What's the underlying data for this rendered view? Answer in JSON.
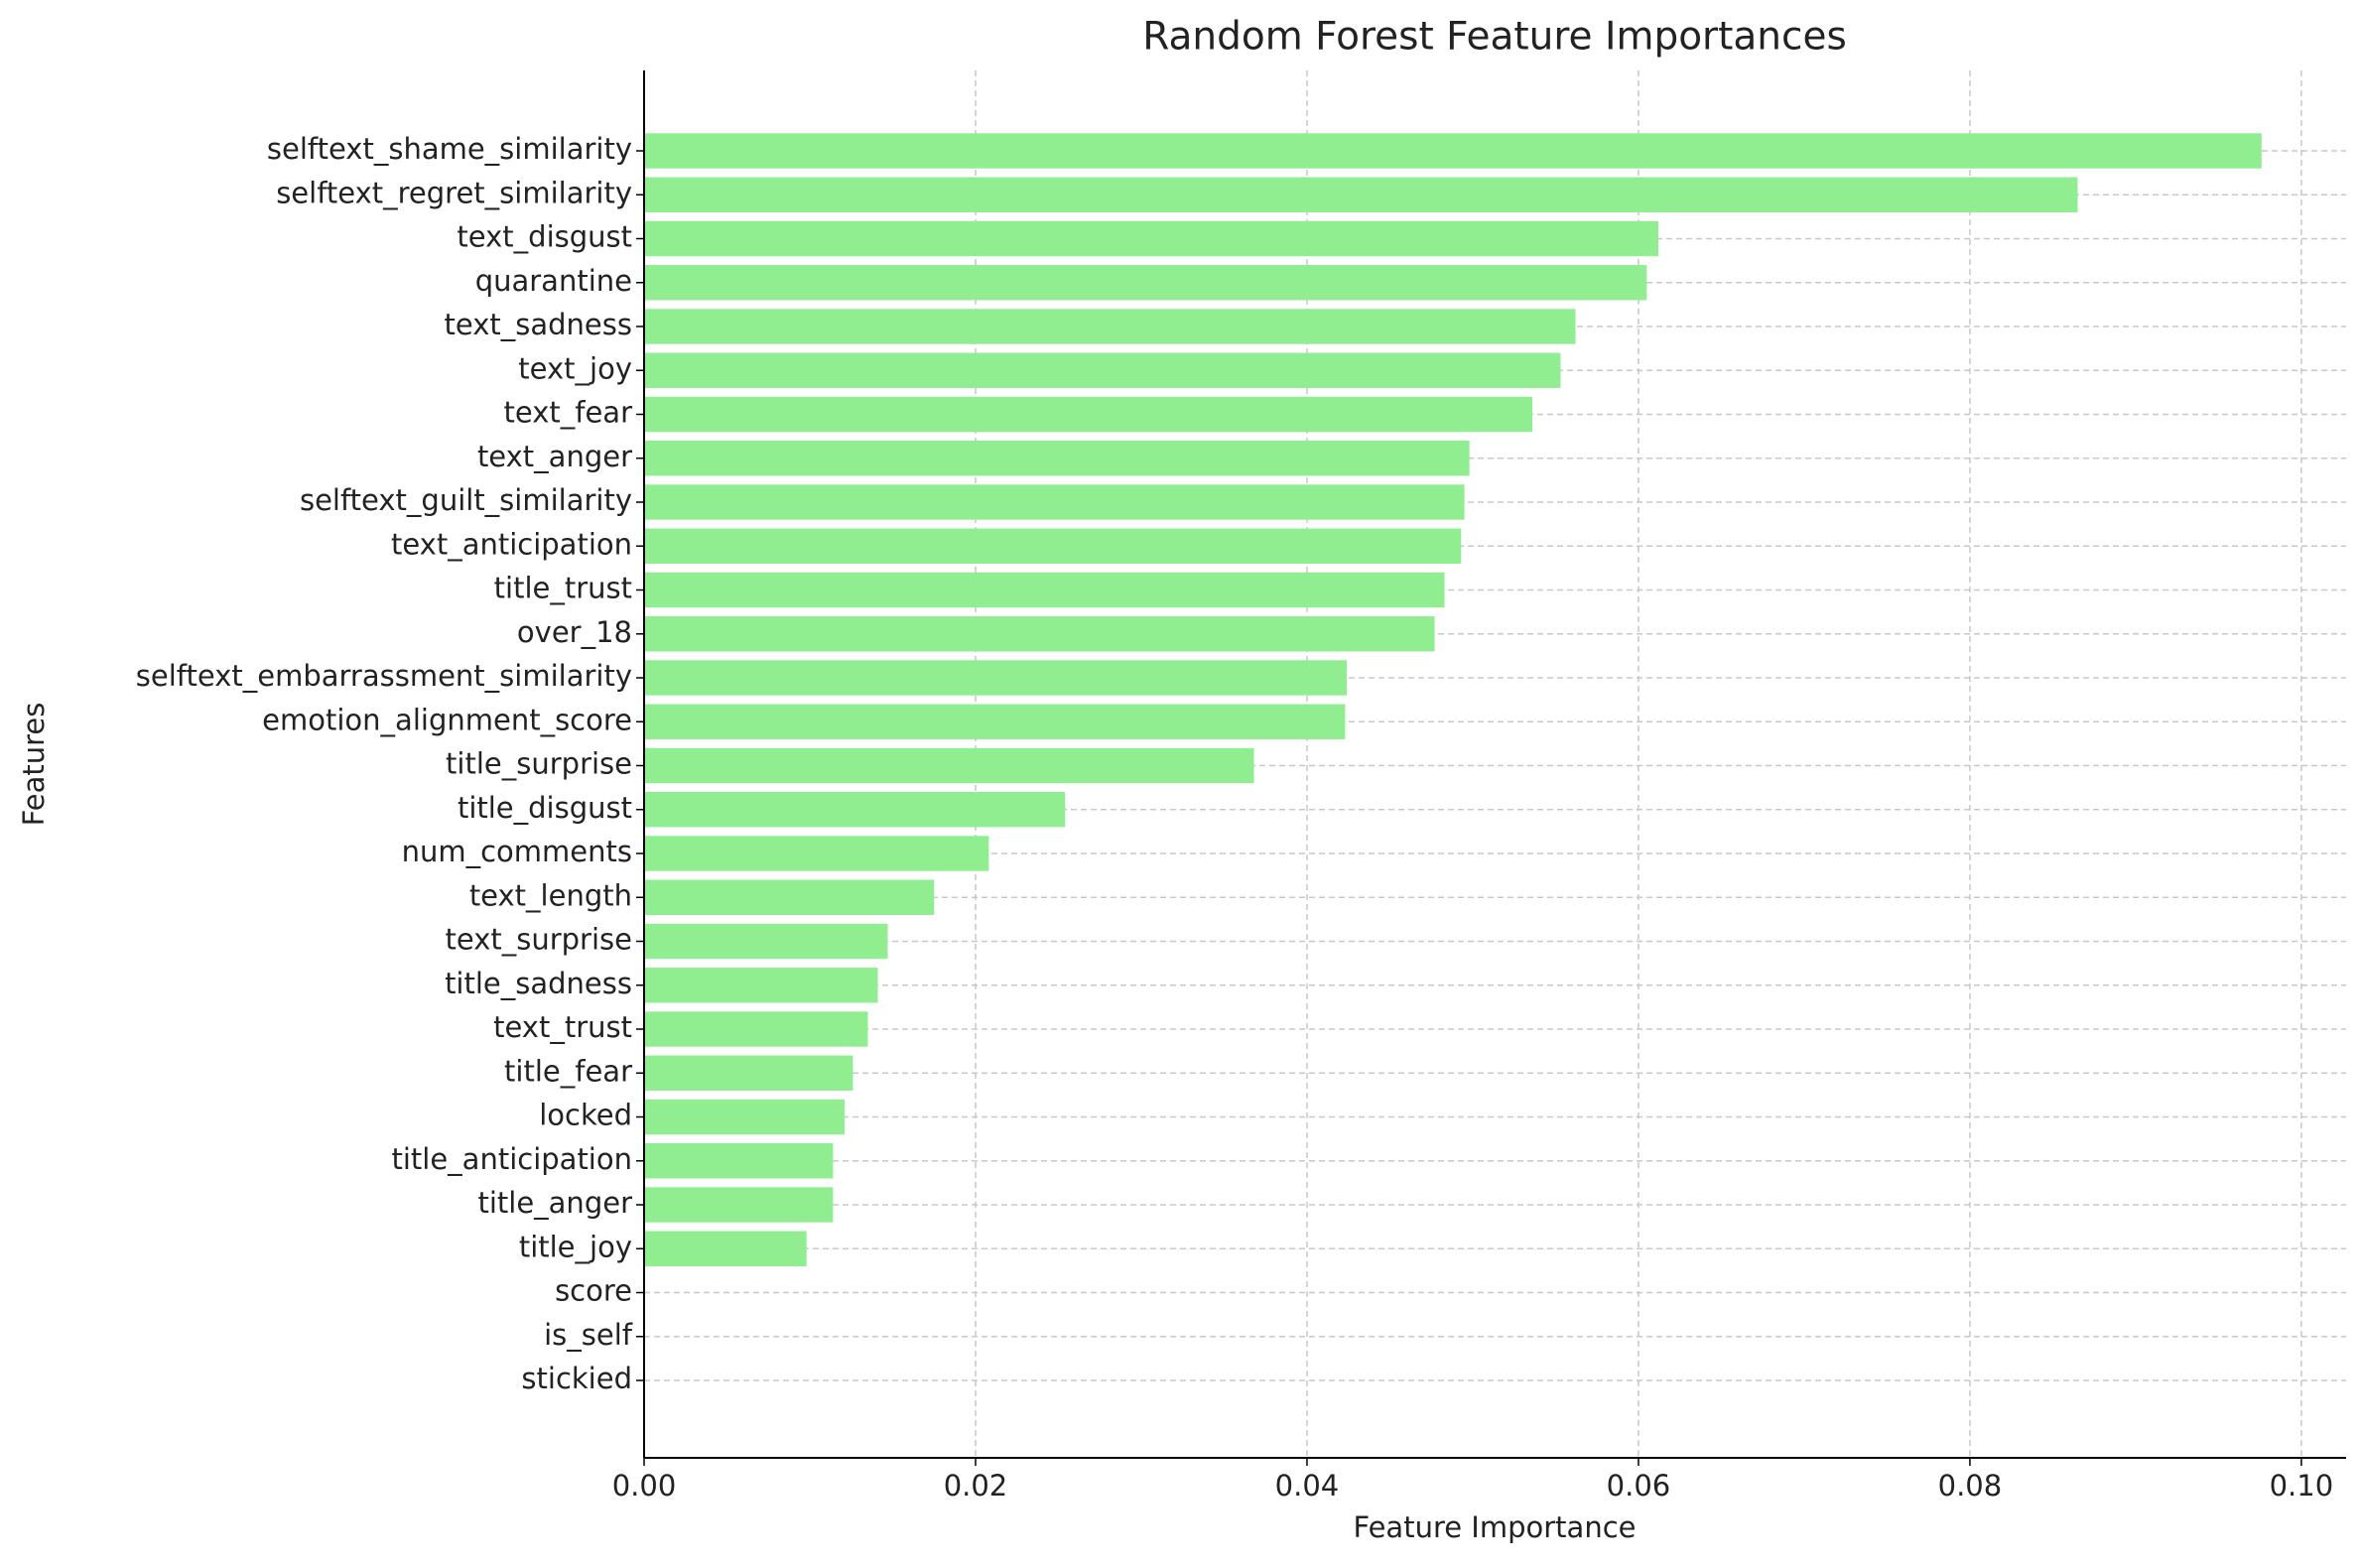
{
  "chart_data": {
    "type": "barh",
    "title": "Random Forest Feature Importances",
    "x_label": "Feature Importance",
    "y_label": "Features",
    "categories": [
      "selftext_shame_similarity",
      "selftext_regret_similarity",
      "text_disgust",
      "quarantine",
      "text_sadness",
      "text_joy",
      "text_fear",
      "text_anger",
      "selftext_guilt_similarity",
      "text_anticipation",
      "title_trust",
      "over_18",
      "selftext_embarrassment_similarity",
      "emotion_alignment_score",
      "title_surprise",
      "title_disgust",
      "num_comments",
      "text_length",
      "text_surprise",
      "title_sadness",
      "text_trust",
      "title_fear",
      "locked",
      "title_anticipation",
      "title_anger",
      "title_joy",
      "score",
      "is_self",
      "stickied"
    ],
    "values": [
      0.0976,
      0.0865,
      0.0612,
      0.0605,
      0.0562,
      0.0553,
      0.0536,
      0.0498,
      0.0495,
      0.0493,
      0.0483,
      0.0477,
      0.0424,
      0.0423,
      0.0368,
      0.0254,
      0.0208,
      0.0175,
      0.0147,
      0.0141,
      0.0135,
      0.0126,
      0.0121,
      0.0114,
      0.0114,
      0.0098,
      0,
      0,
      0
    ],
    "color": "#90ee90",
    "xlim": [
      0,
      0.1027
    ],
    "xticks": [
      {
        "value": 0,
        "label": "0.00"
      },
      {
        "value": 0.02,
        "label": "0.02"
      },
      {
        "value": 0.04,
        "label": "0.04"
      },
      {
        "value": 0.06,
        "label": "0.06"
      },
      {
        "value": 0.08,
        "label": "0.08"
      },
      {
        "value": 0.1,
        "label": "0.10"
      }
    ],
    "grid": true
  }
}
